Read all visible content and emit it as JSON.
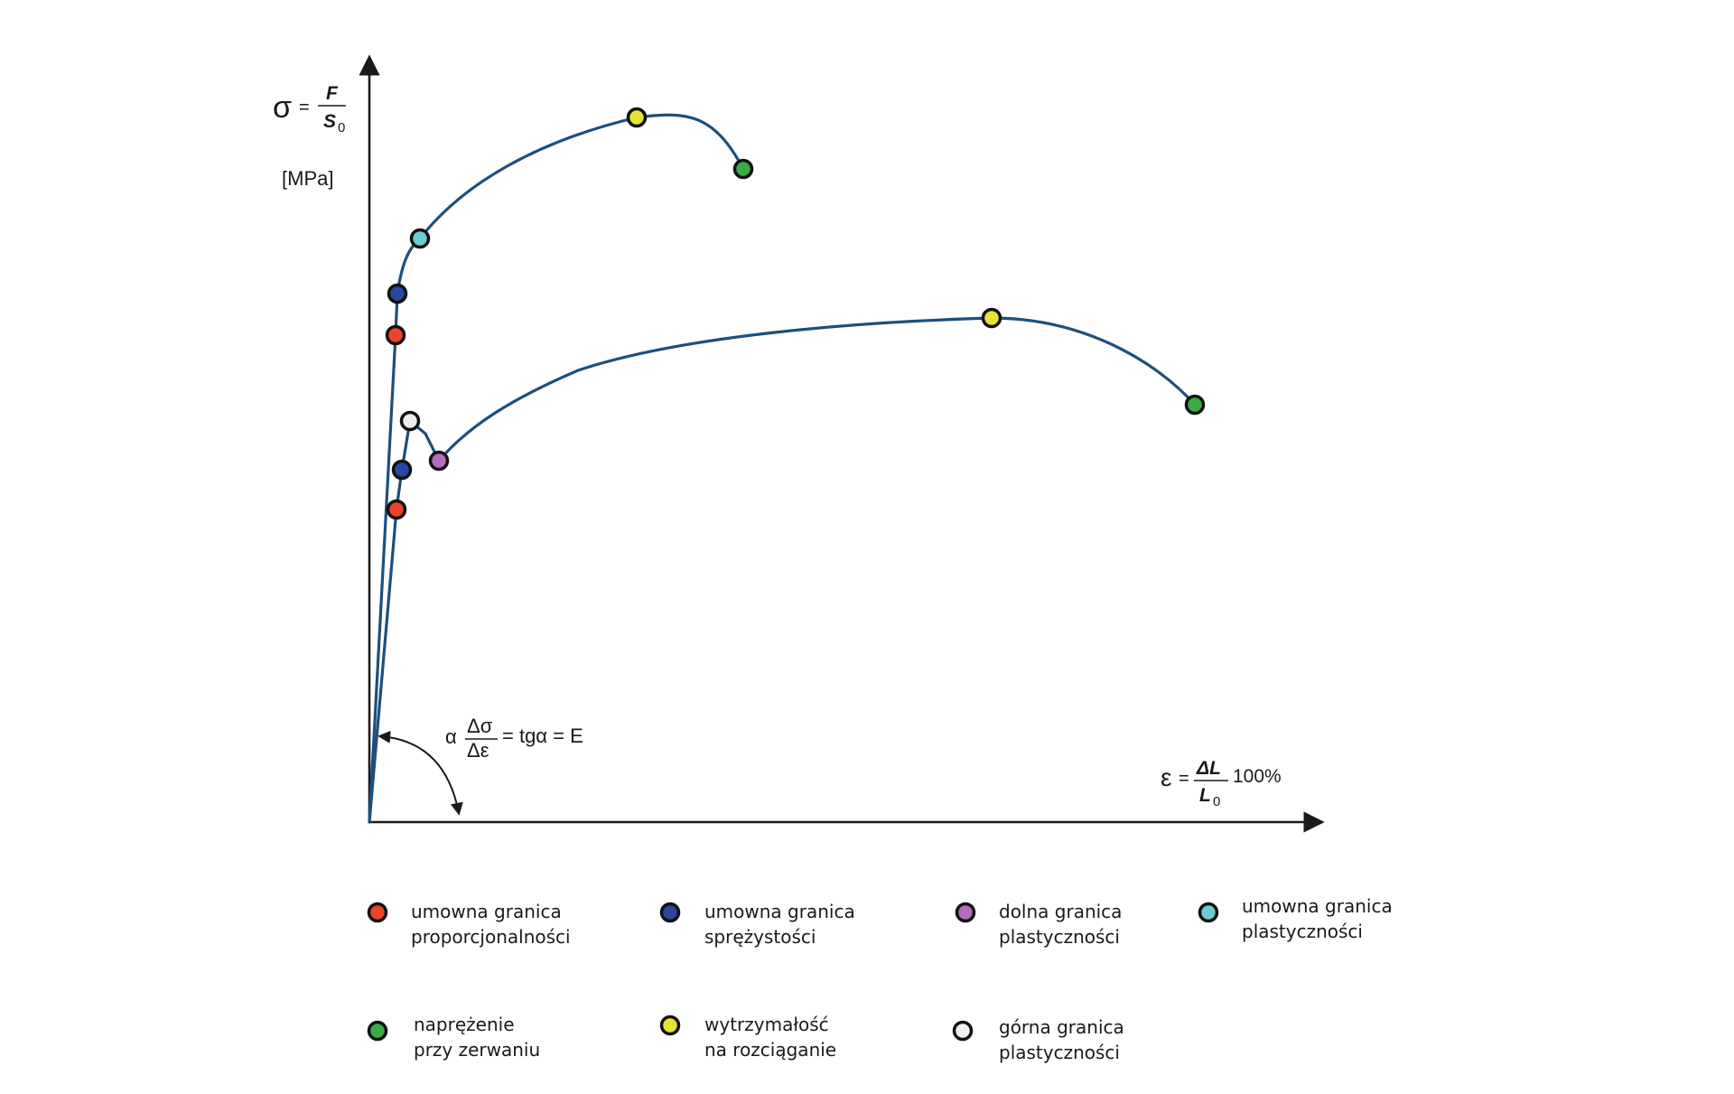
{
  "colors": {
    "curve": "#1d4f7c",
    "proportionality_limit": "#e8452c",
    "elasticity_limit": "#2a46a0",
    "lower_yield_point": "#b56bbf",
    "proof_yield_limit": "#6ccbd3",
    "breaking_stress": "#3daa45",
    "tensile_strength": "#e5e236",
    "upper_yield_point": "#eeeeee"
  },
  "y_axis": {
    "symbol": "σ",
    "equals": "=",
    "numerator": "F",
    "denominator": "S",
    "denominator_subscript": "0",
    "unit": "[MPa]"
  },
  "x_axis": {
    "symbol": "ε",
    "equals": "=",
    "numerator": "ΔL",
    "denominator": "L",
    "denominator_subscript": "0",
    "suffix": "100%"
  },
  "angle_formula": {
    "alpha": "α",
    "numerator": "Δσ",
    "denominator": "Δε",
    "rest": "= tgα = E"
  },
  "legend": [
    {
      "line1": "umowna granica",
      "line2": "proporcjonalności",
      "color_key": "proportionality_limit"
    },
    {
      "line1": "umowna granica",
      "line2": "sprężystości",
      "color_key": "elasticity_limit"
    },
    {
      "line1": "dolna granica",
      "line2": "plastyczności",
      "color_key": "lower_yield_point"
    },
    {
      "line1": "umowna granica",
      "line2": "plastyczności",
      "color_key": "proof_yield_limit"
    },
    {
      "line1": "naprężenie",
      "line2": "przy zerwaniu",
      "color_key": "breaking_stress"
    },
    {
      "line1": "wytrzymałość",
      "line2": "na rozciąganie",
      "color_key": "tensile_strength"
    },
    {
      "line1": "górna granica",
      "line2": "plastyczności",
      "color_key": "upper_yield_point"
    }
  ]
}
